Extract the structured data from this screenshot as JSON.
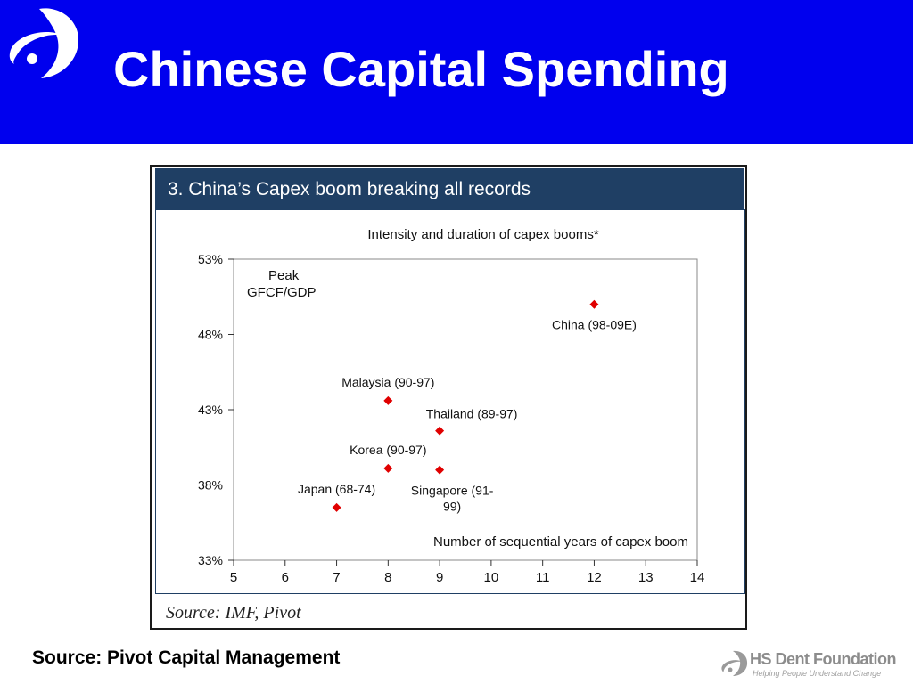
{
  "slide": {
    "title": "Chinese Capital Spending",
    "source": "Source: Pivot Capital Management",
    "logo_icon": "swoosh-logo-icon"
  },
  "figure": {
    "header": "3. China’s Capex boom breaking all records",
    "source": "Source: IMF, Pivot"
  },
  "footer": {
    "name": "HS Dent Foundation",
    "tagline": "Helping People Understand Change"
  },
  "colors": {
    "header_bg": "#0000ee",
    "figure_header_bg": "#1f3f64",
    "marker": "#e00000"
  },
  "chart_data": {
    "type": "scatter",
    "title": "Intensity and duration of capex booms*",
    "xlabel": "Number of sequential years of capex boom",
    "ylabel": "Peak GFCF/GDP",
    "ylabel_lines": [
      "Peak",
      "GFCF/GDP"
    ],
    "xlim": [
      5,
      14
    ],
    "ylim": [
      33,
      53
    ],
    "xticks": [
      5,
      6,
      7,
      8,
      9,
      10,
      11,
      12,
      13,
      14
    ],
    "yticks": [
      33,
      38,
      43,
      48,
      53
    ],
    "ytick_suffix": "%",
    "grid": false,
    "marker": "diamond",
    "points": [
      {
        "label": "China (98-09E)",
        "label_lines": [
          "China (98-09E)"
        ],
        "x": 12,
        "y": 50,
        "anchor": "below"
      },
      {
        "label": "Malaysia (90-97)",
        "label_lines": [
          "Malaysia (90-97)"
        ],
        "x": 8,
        "y": 43.6,
        "anchor": "above"
      },
      {
        "label": "Thailand (89-97)",
        "label_lines": [
          "Thailand (89-97)"
        ],
        "x": 9,
        "y": 41.6,
        "anchor": "above-right"
      },
      {
        "label": "Korea (90-97)",
        "label_lines": [
          "Korea (90-97)"
        ],
        "x": 8,
        "y": 39.1,
        "anchor": "above"
      },
      {
        "label": "Singapore (91-99)",
        "label_lines": [
          "Singapore (91-",
          "99)"
        ],
        "x": 9,
        "y": 39.0,
        "anchor": "below"
      },
      {
        "label": "Japan (68-74)",
        "label_lines": [
          "Japan (68-74)"
        ],
        "x": 7,
        "y": 36.5,
        "anchor": "above"
      }
    ]
  }
}
